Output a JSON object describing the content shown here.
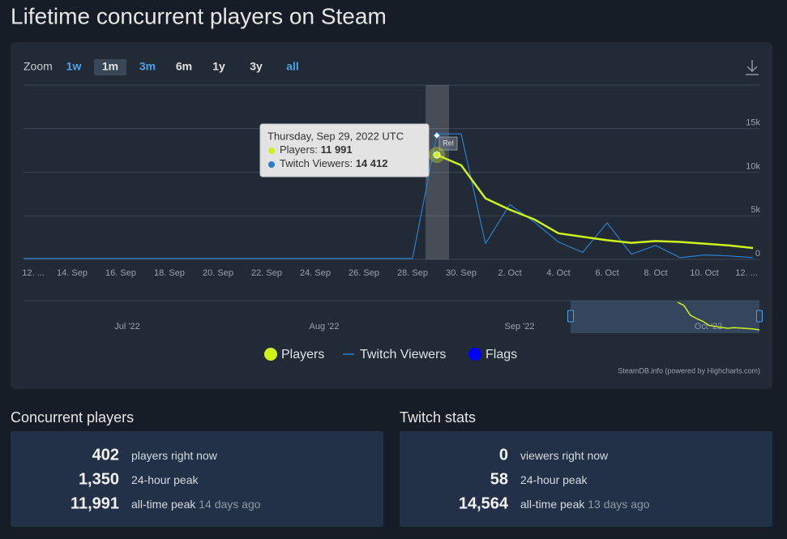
{
  "title": "Lifetime concurrent players on Steam",
  "zoom": {
    "label": "Zoom",
    "options": [
      "1w",
      "1m",
      "3m",
      "6m",
      "1y",
      "3y",
      "all"
    ],
    "active": "1m"
  },
  "chart_data": {
    "type": "line",
    "categories": [
      "12. ...",
      null,
      "14. Sep",
      null,
      "16. Sep",
      null,
      "18. Sep",
      null,
      "20. Sep",
      null,
      "22. Sep",
      null,
      "24. Sep",
      null,
      "26. Sep",
      null,
      "28. Sep",
      null,
      "30. Sep",
      null,
      "2. Oct",
      null,
      "4. Oct",
      null,
      "6. Oct",
      null,
      "8. Oct",
      null,
      "10. Oct",
      null,
      "12. ..."
    ],
    "series": [
      {
        "name": "Players",
        "color": "#cdf21c",
        "values": [
          null,
          null,
          null,
          null,
          null,
          null,
          null,
          null,
          null,
          null,
          null,
          null,
          null,
          null,
          null,
          null,
          null,
          11991,
          10800,
          7000,
          5700,
          4600,
          3000,
          2600,
          2200,
          1900,
          2100,
          2000,
          1800,
          1600,
          1300
        ]
      },
      {
        "name": "Twitch Viewers",
        "color": "#2b7fd0",
        "values": [
          100,
          100,
          100,
          100,
          100,
          100,
          100,
          100,
          100,
          100,
          100,
          100,
          100,
          100,
          100,
          100,
          100,
          14412,
          14400,
          1800,
          6300,
          4300,
          2000,
          800,
          4200,
          600,
          1600,
          200,
          500,
          400,
          200
        ]
      }
    ],
    "flags": {
      "name": "Flags",
      "color": "#0000ff",
      "label": "Rel"
    },
    "ylim": [
      0,
      20000
    ],
    "yticks": [
      {
        "value": 0,
        "label": "0"
      },
      {
        "value": 5000,
        "label": "5k"
      },
      {
        "value": 10000,
        "label": "10k"
      },
      {
        "value": 15000,
        "label": "15k"
      }
    ],
    "grid": true,
    "tooltip": {
      "date": "Thursday, Sep 29, 2022 UTC",
      "rows": [
        {
          "label": "Players:",
          "value": {
            "value": 11991,
            "label": "11 991"
          }
        },
        {
          "label": "Twitch Viewers:",
          "value": {
            "value": 14412,
            "label": "14 412"
          }
        }
      ]
    },
    "navigator": {
      "labels": [
        "Jul '22",
        "Aug '22",
        "Sep '22",
        "Oct '22"
      ]
    },
    "credits": "SteamDB.info (powered by Highcharts.com)"
  },
  "stats": [
    {
      "heading": "Concurrent players",
      "rows": [
        {
          "value": "402",
          "label": "players right now"
        },
        {
          "value": "1,350",
          "label": "24-hour peak"
        },
        {
          "value": "11,991",
          "label": "all-time peak",
          "note": "14 days ago"
        }
      ]
    },
    {
      "heading": "Twitch stats",
      "rows": [
        {
          "value": "0",
          "label": "viewers right now"
        },
        {
          "value": "58",
          "label": "24-hour peak"
        },
        {
          "value": "14,564",
          "label": "all-time peak",
          "note": "13 days ago"
        }
      ]
    }
  ]
}
